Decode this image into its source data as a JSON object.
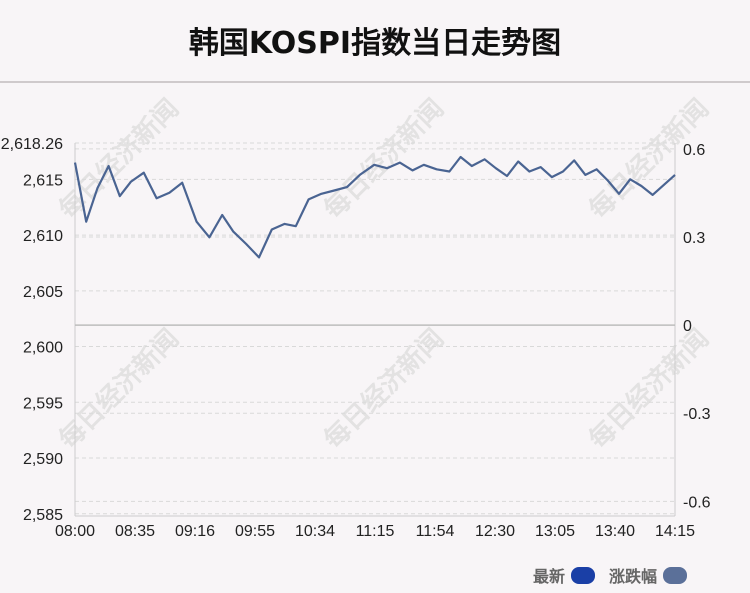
{
  "title": "韩国KOSPI指数当日走势图",
  "watermark": "每日经济新闻",
  "colors": {
    "line": "#4a6492",
    "swatch_latest": "#1a3fa6",
    "swatch_change": "#5b7099",
    "grid": "#d9d9d9",
    "zero_line": "#bdbdbd",
    "axis_text": "#222222",
    "watermark": "#dcdcdc"
  },
  "legend": [
    {
      "label": "最新"
    },
    {
      "label": "涨跌幅"
    }
  ],
  "chart_data": {
    "type": "line",
    "title": "韩国KOSPI指数当日走势图",
    "x_ticks": [
      "08:00",
      "08:35",
      "09:16",
      "09:55",
      "10:34",
      "11:15",
      "11:54",
      "12:30",
      "13:05",
      "13:40",
      "14:15"
    ],
    "y_left_ticks": [
      "2,618.26",
      "2,615",
      "2,610",
      "2,605",
      "2,600",
      "2,595",
      "2,590",
      "2,585"
    ],
    "y_right_ticks": [
      "0.6",
      "0.3",
      "0",
      "-0.3",
      "-0.6"
    ],
    "ylim": [
      2584.8,
      2618.26
    ],
    "y_right_lim": [
      -0.65,
      0.62
    ],
    "grid": "horizontal dashed",
    "legend_position": "bottom-right",
    "series": [
      {
        "name": "最新",
        "x": [
          "08:00",
          "08:07",
          "08:14",
          "08:21",
          "08:28",
          "08:35",
          "08:43",
          "08:51",
          "08:59",
          "09:07",
          "09:16",
          "09:24",
          "09:32",
          "09:39",
          "09:47",
          "09:55",
          "10:03",
          "10:11",
          "10:18",
          "10:26",
          "10:34",
          "10:42",
          "10:50",
          "10:58",
          "11:07",
          "11:15",
          "11:23",
          "11:31",
          "11:38",
          "11:46",
          "11:54",
          "12:01",
          "12:08",
          "12:16",
          "12:23",
          "12:30",
          "12:37",
          "12:44",
          "12:51",
          "12:58",
          "13:05",
          "13:12",
          "13:19",
          "13:26",
          "13:33",
          "13:40",
          "13:47",
          "13:54",
          "14:01",
          "14:08",
          "14:15"
        ],
        "values": [
          2616.5,
          2611.2,
          2614.2,
          2616.2,
          2613.5,
          2614.8,
          2615.6,
          2613.3,
          2613.8,
          2614.7,
          2611.2,
          2609.8,
          2611.8,
          2610.3,
          2609.2,
          2608.0,
          2610.5,
          2611.0,
          2610.8,
          2613.2,
          2613.7,
          2614.0,
          2614.3,
          2615.4,
          2616.3,
          2616.0,
          2616.5,
          2615.8,
          2616.3,
          2615.9,
          2615.7,
          2617.0,
          2616.2,
          2616.8,
          2616.0,
          2615.3,
          2616.6,
          2615.7,
          2616.1,
          2615.2,
          2615.7,
          2616.7,
          2615.4,
          2615.9,
          2614.9,
          2613.7,
          2615.0,
          2614.4,
          2613.6,
          2614.5,
          2615.4
        ]
      }
    ]
  }
}
